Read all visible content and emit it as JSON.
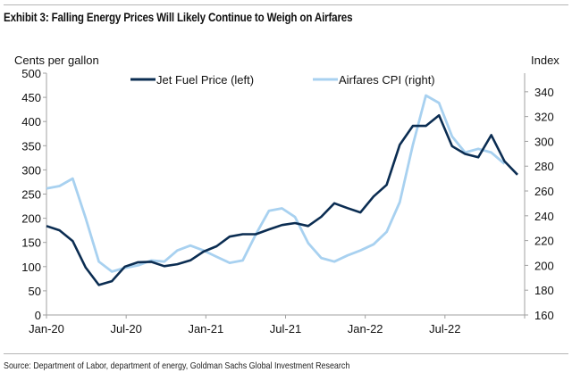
{
  "exhibit_title": "Exhibit 3: Falling Energy Prices Will Likely Continue to Weigh on Airfares",
  "source": "Source: Department of Labor, department of energy, Goldman Sachs Global Investment Research",
  "chart_data": {
    "type": "line",
    "title": "Exhibit 3: Falling Energy Prices Will Likely Continue to Weigh on Airfares",
    "ylabel_left": "Cents per gallon",
    "ylabel_right": "Index",
    "xlabel": "",
    "ylim_left": [
      0,
      500
    ],
    "ylim_right": [
      160,
      355
    ],
    "yticks_left": [
      0,
      50,
      100,
      150,
      200,
      250,
      300,
      350,
      400,
      450,
      500
    ],
    "yticks_right": [
      160,
      180,
      200,
      220,
      240,
      260,
      280,
      300,
      320,
      340
    ],
    "x_tick_labels": [
      "Jan-20",
      "Jul-20",
      "Jan-21",
      "Jul-21",
      "Jan-22",
      "Jul-22"
    ],
    "x_tick_month_index": [
      0,
      6,
      12,
      18,
      24,
      30
    ],
    "x_range_months": [
      0,
      36
    ],
    "grid": false,
    "legend_position": "top",
    "series": [
      {
        "name": "Jet Fuel Price (left)",
        "axis": "left",
        "color": "#0b2d52",
        "start": "Jan-20",
        "values": [
          184,
          175,
          153,
          98,
          62,
          70,
          100,
          109,
          110,
          101,
          105,
          113,
          131,
          142,
          162,
          167,
          167,
          177,
          186,
          190,
          184,
          203,
          231,
          221,
          212,
          245,
          269,
          352,
          391,
          391,
          413,
          349,
          333,
          326,
          372,
          318,
          290
        ]
      },
      {
        "name": "Airfares CPI (right)",
        "axis": "right",
        "color": "#a8d1f0",
        "start": "Jan-20",
        "values": [
          262,
          264,
          270,
          238,
          203,
          195,
          198,
          200,
          204,
          203,
          212,
          216,
          212,
          207,
          202,
          204,
          225,
          244,
          246,
          239,
          218,
          206,
          203,
          208,
          212,
          217,
          227,
          251,
          297,
          337,
          331,
          304,
          291,
          294,
          291,
          282
        ]
      }
    ]
  }
}
